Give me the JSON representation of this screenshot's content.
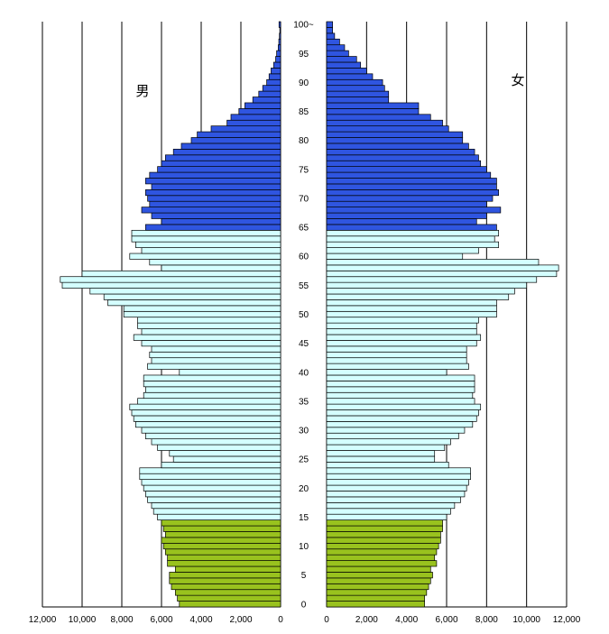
{
  "chart_data": {
    "type": "bar",
    "orientation": "horizontal",
    "title": "",
    "xlabel": "",
    "ylabel": "",
    "xlim": [
      0,
      12000
    ],
    "grid": true,
    "male_label": "男",
    "female_label": "女",
    "age_tick_labels": [
      "0",
      "5",
      "10",
      "15",
      "20",
      "25",
      "30",
      "35",
      "40",
      "45",
      "50",
      "55",
      "60",
      "65",
      "70",
      "75",
      "80",
      "85",
      "90",
      "95",
      "100~"
    ],
    "male_tick_labels": [
      "12,000",
      "10,000",
      "8,000",
      "6,000",
      "4,000",
      "2,000",
      "0"
    ],
    "female_tick_labels": [
      "0",
      "2,000",
      "4,000",
      "6,000",
      "8,000",
      "10,000",
      "12,000"
    ],
    "colors": {
      "child": "#99c21e",
      "working": "#d4ffff",
      "elderly": "#2f55e0",
      "outline": "#000000",
      "grid": "#000000"
    },
    "age_groups": [
      {
        "color_key": "child",
        "ages": [
          0,
          14
        ]
      },
      {
        "color_key": "working",
        "ages": [
          15,
          64
        ]
      },
      {
        "color_key": "elderly",
        "ages": [
          65,
          100
        ]
      }
    ],
    "ages": [
      0,
      1,
      2,
      3,
      4,
      5,
      6,
      7,
      8,
      9,
      10,
      11,
      12,
      13,
      14,
      15,
      16,
      17,
      18,
      19,
      20,
      21,
      22,
      23,
      24,
      25,
      26,
      27,
      28,
      29,
      30,
      31,
      32,
      33,
      34,
      35,
      36,
      37,
      38,
      39,
      40,
      41,
      42,
      43,
      44,
      45,
      46,
      47,
      48,
      49,
      50,
      51,
      52,
      53,
      54,
      55,
      56,
      57,
      58,
      59,
      60,
      61,
      62,
      63,
      64,
      65,
      66,
      67,
      68,
      69,
      70,
      71,
      72,
      73,
      74,
      75,
      76,
      77,
      78,
      79,
      80,
      81,
      82,
      83,
      84,
      85,
      86,
      87,
      88,
      89,
      90,
      91,
      92,
      93,
      94,
      95,
      96,
      97,
      98,
      99,
      100
    ],
    "series": [
      {
        "name": "男",
        "values": [
          5100,
          5200,
          5300,
          5500,
          5600,
          5600,
          5300,
          5700,
          5700,
          5800,
          5900,
          6000,
          5800,
          5900,
          6000,
          6200,
          6400,
          6500,
          6700,
          6800,
          6900,
          7000,
          7100,
          7100,
          6000,
          5400,
          5600,
          6200,
          6500,
          6800,
          7000,
          7300,
          7400,
          7500,
          7600,
          7200,
          6900,
          6800,
          6900,
          6900,
          5100,
          6700,
          6500,
          6600,
          6500,
          7000,
          7400,
          7000,
          7200,
          7200,
          7900,
          7900,
          8700,
          8900,
          9600,
          11000,
          11100,
          10000,
          6000,
          6600,
          7600,
          7000,
          7300,
          7500,
          7500,
          6800,
          6000,
          6500,
          7000,
          6600,
          6700,
          6800,
          6500,
          6800,
          6600,
          6200,
          6000,
          5800,
          5400,
          5000,
          4500,
          4200,
          3500,
          2700,
          2500,
          2100,
          1800,
          1400,
          1100,
          900,
          700,
          580,
          480,
          350,
          250,
          200,
          120,
          90,
          60,
          40,
          80
        ]
      },
      {
        "name": "女",
        "values": [
          4900,
          4900,
          5000,
          5100,
          5200,
          5300,
          5200,
          5500,
          5400,
          5500,
          5600,
          5700,
          5700,
          5800,
          5800,
          6000,
          6200,
          6400,
          6700,
          6900,
          7000,
          7100,
          7200,
          7200,
          6100,
          5400,
          5400,
          5900,
          6200,
          6600,
          6900,
          7300,
          7500,
          7600,
          7700,
          7400,
          7300,
          7400,
          7400,
          7400,
          6000,
          7100,
          7000,
          7000,
          7000,
          7500,
          7700,
          7500,
          7500,
          7600,
          8500,
          8500,
          8500,
          9100,
          9400,
          10000,
          10500,
          11500,
          11600,
          10600,
          6800,
          7600,
          8600,
          8400,
          8600,
          8500,
          7500,
          8000,
          8700,
          8000,
          8300,
          8600,
          8500,
          8500,
          8200,
          8000,
          7700,
          7600,
          7400,
          7100,
          6800,
          6800,
          6100,
          5800,
          5200,
          4600,
          4600,
          3100,
          3100,
          2900,
          2800,
          2300,
          2000,
          1700,
          1500,
          1100,
          900,
          650,
          400,
          300,
          300
        ]
      }
    ]
  }
}
